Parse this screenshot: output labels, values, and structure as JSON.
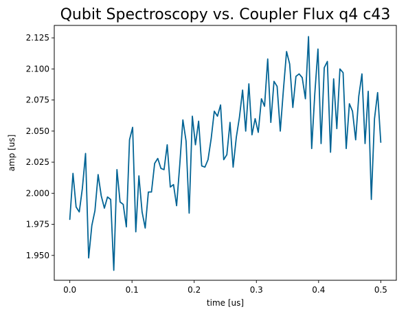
{
  "chart_data": {
    "type": "line",
    "title": "Qubit Spectroscopy vs. Coupler Flux q4 c43",
    "xlabel": "time [us]",
    "ylabel": "amp [us]",
    "xlim": [
      -0.025,
      0.525
    ],
    "ylim": [
      1.93,
      2.135
    ],
    "x_ticks": [
      0.0,
      0.1,
      0.2,
      0.3,
      0.4,
      0.5
    ],
    "x_tick_labels": [
      "0.0",
      "0.1",
      "0.2",
      "0.3",
      "0.4",
      "0.5"
    ],
    "y_ticks": [
      1.95,
      1.975,
      2.0,
      2.025,
      2.05,
      2.075,
      2.1,
      2.125
    ],
    "y_tick_labels": [
      "1.950",
      "1.975",
      "2.000",
      "2.025",
      "2.050",
      "2.075",
      "2.100",
      "2.125"
    ],
    "grid": false,
    "series": [
      {
        "color": "#006394",
        "x": [
          0.0,
          0.0051,
          0.0101,
          0.0152,
          0.0202,
          0.0253,
          0.0303,
          0.0354,
          0.0404,
          0.0455,
          0.0505,
          0.0556,
          0.0606,
          0.0657,
          0.0707,
          0.0758,
          0.0808,
          0.0859,
          0.0909,
          0.096,
          0.101,
          0.1061,
          0.1111,
          0.1162,
          0.1212,
          0.1263,
          0.1313,
          0.1364,
          0.1414,
          0.1465,
          0.1515,
          0.1566,
          0.1616,
          0.1667,
          0.1717,
          0.1768,
          0.1818,
          0.1869,
          0.1919,
          0.197,
          0.202,
          0.2071,
          0.2121,
          0.2172,
          0.2222,
          0.2273,
          0.2323,
          0.2374,
          0.2424,
          0.2475,
          0.2525,
          0.2576,
          0.2626,
          0.2677,
          0.2727,
          0.2778,
          0.2828,
          0.2879,
          0.2929,
          0.298,
          0.303,
          0.3081,
          0.3131,
          0.3182,
          0.3232,
          0.3283,
          0.3333,
          0.3384,
          0.3434,
          0.3485,
          0.3535,
          0.3586,
          0.3636,
          0.3687,
          0.3737,
          0.3788,
          0.3838,
          0.3889,
          0.3939,
          0.399,
          0.404,
          0.4091,
          0.4141,
          0.4192,
          0.4242,
          0.4293,
          0.4343,
          0.4394,
          0.4444,
          0.4495,
          0.4545,
          0.4596,
          0.4646,
          0.4697,
          0.4747,
          0.4798,
          0.4848,
          0.4899,
          0.4949,
          0.5
        ],
        "y": [
          1.979,
          2.016,
          1.989,
          1.985,
          2.004,
          2.032,
          1.948,
          1.974,
          1.986,
          2.015,
          1.998,
          1.988,
          1.997,
          1.995,
          1.938,
          2.019,
          1.993,
          1.991,
          1.973,
          2.043,
          2.053,
          1.969,
          2.014,
          1.985,
          1.972,
          2.001,
          2.001,
          2.024,
          2.028,
          2.02,
          2.019,
          2.039,
          2.005,
          2.007,
          1.99,
          2.023,
          2.059,
          2.042,
          1.984,
          2.062,
          2.039,
          2.058,
          2.022,
          2.021,
          2.027,
          2.044,
          2.066,
          2.062,
          2.071,
          2.027,
          2.031,
          2.057,
          2.021,
          2.045,
          2.061,
          2.083,
          2.05,
          2.088,
          2.047,
          2.06,
          2.049,
          2.076,
          2.07,
          2.108,
          2.057,
          2.09,
          2.086,
          2.05,
          2.083,
          2.114,
          2.104,
          2.069,
          2.094,
          2.096,
          2.093,
          2.076,
          2.126,
          2.036,
          2.08,
          2.116,
          2.04,
          2.101,
          2.106,
          2.033,
          2.092,
          2.052,
          2.1,
          2.097,
          2.036,
          2.072,
          2.066,
          2.043,
          2.078,
          2.096,
          2.04,
          2.082,
          1.995,
          2.06,
          2.081,
          2.041
        ]
      }
    ]
  }
}
